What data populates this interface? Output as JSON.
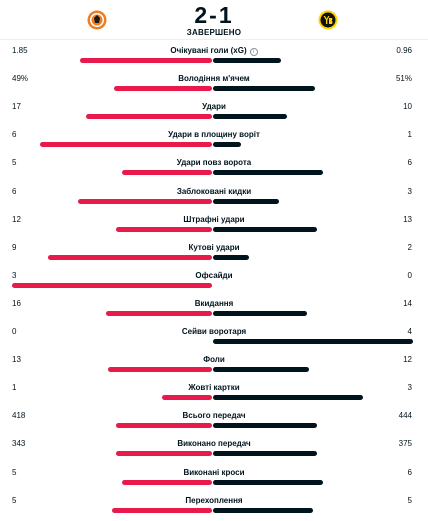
{
  "match": {
    "score": "2-1",
    "status": "ЗАВЕРШЕНО",
    "home_logo": "shakhtar-logo",
    "away_logo": "young-boys-logo"
  },
  "colors": {
    "home": "#e8194b",
    "away": "#00141e",
    "shakhtar_orange": "#ee7d1f",
    "yb_yellow": "#ffd200"
  },
  "stats": [
    {
      "name": "Очікувані голи (xG)",
      "home": "1.85",
      "away": "0.96",
      "info": true,
      "home_frac": 0.66,
      "away_frac": 0.34
    },
    {
      "name": "Володіння м'ячем",
      "home": "49%",
      "away": "51%",
      "home_frac": 0.49,
      "away_frac": 0.51
    },
    {
      "name": "Удари",
      "home": "17",
      "away": "10",
      "home_frac": 0.63,
      "away_frac": 0.37
    },
    {
      "name": "Удари в площину воріт",
      "home": "6",
      "away": "1",
      "home_frac": 0.86,
      "away_frac": 0.14
    },
    {
      "name": "Удари повз ворота",
      "home": "5",
      "away": "6",
      "home_frac": 0.45,
      "away_frac": 0.55
    },
    {
      "name": "Заблоковані кидки",
      "home": "6",
      "away": "3",
      "home_frac": 0.67,
      "away_frac": 0.33
    },
    {
      "name": "Штрафні удари",
      "home": "12",
      "away": "13",
      "home_frac": 0.48,
      "away_frac": 0.52
    },
    {
      "name": "Кутові удари",
      "home": "9",
      "away": "2",
      "home_frac": 0.82,
      "away_frac": 0.18
    },
    {
      "name": "Офсайди",
      "home": "3",
      "away": "0",
      "home_frac": 1.0,
      "away_frac": 0.0
    },
    {
      "name": "Вкидання",
      "home": "16",
      "away": "14",
      "home_frac": 0.53,
      "away_frac": 0.47
    },
    {
      "name": "Сейви воротаря",
      "home": "0",
      "away": "4",
      "home_frac": 0.0,
      "away_frac": 1.0
    },
    {
      "name": "Фоли",
      "home": "13",
      "away": "12",
      "home_frac": 0.52,
      "away_frac": 0.48
    },
    {
      "name": "Жовті картки",
      "home": "1",
      "away": "3",
      "home_frac": 0.25,
      "away_frac": 0.75
    },
    {
      "name": "Всього передач",
      "home": "418",
      "away": "444",
      "home_frac": 0.48,
      "away_frac": 0.52
    },
    {
      "name": "Виконано передач",
      "home": "343",
      "away": "375",
      "home_frac": 0.48,
      "away_frac": 0.52
    },
    {
      "name": "Виконані кроси",
      "home": "5",
      "away": "6",
      "home_frac": 0.45,
      "away_frac": 0.55
    },
    {
      "name": "Перехоплення",
      "home": "5",
      "away": "5",
      "home_frac": 0.5,
      "away_frac": 0.5
    }
  ]
}
